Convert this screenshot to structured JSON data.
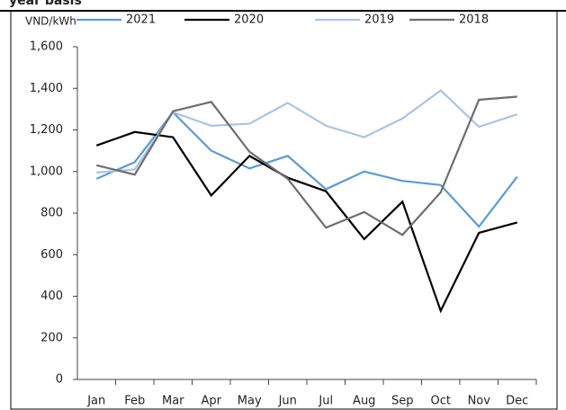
{
  "chart_data": {
    "type": "line",
    "heading": "year basis",
    "y_axis_label": "VND/kWh",
    "categories": [
      "Jan",
      "Feb",
      "Mar",
      "Apr",
      "May",
      "Jun",
      "Jul",
      "Aug",
      "Sep",
      "Oct",
      "Nov",
      "Dec"
    ],
    "series": [
      {
        "name": "2021",
        "color": "#5b9bd5",
        "values": [
          965,
          1045,
          1285,
          1100,
          1015,
          1075,
          915,
          1000,
          955,
          935,
          735,
          975
        ]
      },
      {
        "name": "2020",
        "color": "#000000",
        "values": [
          1125,
          1190,
          1165,
          885,
          1075,
          970,
          905,
          675,
          855,
          330,
          705,
          755
        ]
      },
      {
        "name": "2019",
        "color": "#a9c4e6",
        "values": [
          995,
          1010,
          1285,
          1220,
          1230,
          1330,
          1220,
          1165,
          1255,
          1390,
          1215,
          1275
        ]
      },
      {
        "name": "2018",
        "color": "#6e6e6e",
        "values": [
          1030,
          985,
          1290,
          1335,
          1095,
          965,
          730,
          805,
          695,
          900,
          1345,
          1360
        ]
      }
    ],
    "ylim": [
      0,
      1600
    ],
    "yticks": [
      0,
      200,
      400,
      600,
      800,
      {
        "value": 1000,
        "label": "1,000"
      },
      {
        "value": 1200,
        "label": "1,200"
      },
      {
        "value": 1400,
        "label": "1,400"
      },
      {
        "value": 1600,
        "label": "1,600"
      }
    ],
    "grid": false
  }
}
